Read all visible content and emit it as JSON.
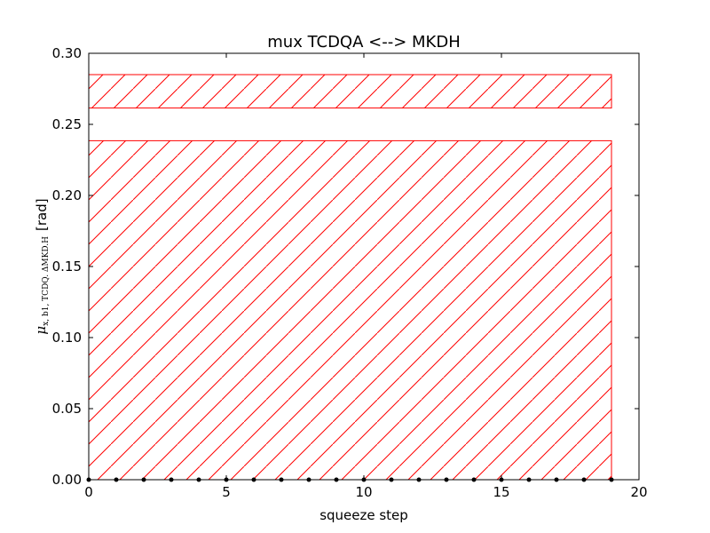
{
  "chart_data": {
    "type": "bar",
    "title": "mux TCDQA <--> MKDH",
    "xlabel": "squeeze step",
    "ylabel": {
      "symbol": "μ",
      "subscript": "x, b1, TCDQ. ΔMKD.H",
      "unit": "[rad]"
    },
    "xlim": [
      0,
      20
    ],
    "ylim": [
      0,
      0.3
    ],
    "xticks": [
      "0",
      "5",
      "10",
      "15",
      "20"
    ],
    "yticks": [
      "0.00",
      "0.05",
      "0.10",
      "0.15",
      "0.20",
      "0.25",
      "0.30"
    ],
    "grid": false,
    "legend": "none",
    "regions": [
      {
        "x_start": 0,
        "x_end": 19,
        "y_start": 0,
        "y_end": 0.2385
      },
      {
        "x_start": 0,
        "x_end": 19,
        "y_start": 0.2615,
        "y_end": 0.285
      }
    ],
    "points": {
      "x": [
        0,
        1,
        2,
        3,
        4,
        5,
        6,
        7,
        8,
        9,
        10,
        11,
        12,
        13,
        14,
        15,
        16,
        17,
        18,
        19
      ],
      "y": [
        0,
        0,
        0,
        0,
        0,
        0,
        0,
        0,
        0,
        0,
        0,
        0,
        0,
        0,
        0,
        0,
        0,
        0,
        0,
        0
      ]
    },
    "colors": {
      "region": "#ff0000",
      "points": "#000000",
      "axes": "#000000"
    }
  }
}
